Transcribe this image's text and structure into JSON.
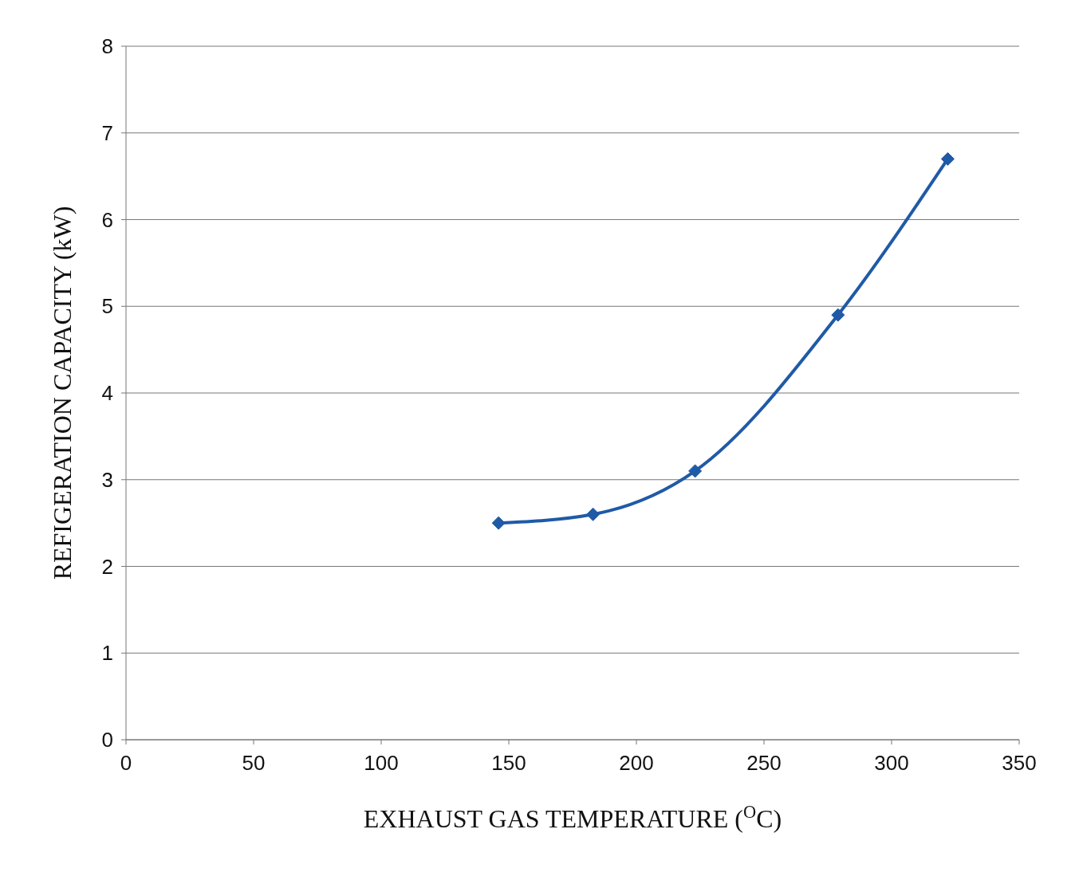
{
  "chart_data": {
    "type": "line",
    "xlabel": "EXHAUST GAS TEMPERATURE ($^{O}$C)",
    "ylabel": "REFIGERATION CAPACITY (kW)",
    "x": [
      146,
      183,
      223,
      279,
      322
    ],
    "series": [
      {
        "color": "#1f5aa6",
        "values": [
          2.5,
          2.6,
          3.1,
          4.9,
          6.7
        ]
      }
    ],
    "xlim": [
      0,
      350
    ],
    "xticks": [
      0,
      50,
      100,
      150,
      200,
      250,
      300,
      350
    ],
    "ylim": [
      0,
      8
    ],
    "yticks": [
      0,
      1,
      2,
      3,
      4,
      5,
      6,
      7,
      8
    ],
    "grid": "y",
    "marker": "diamond",
    "line_style": "solid",
    "legend": false
  }
}
